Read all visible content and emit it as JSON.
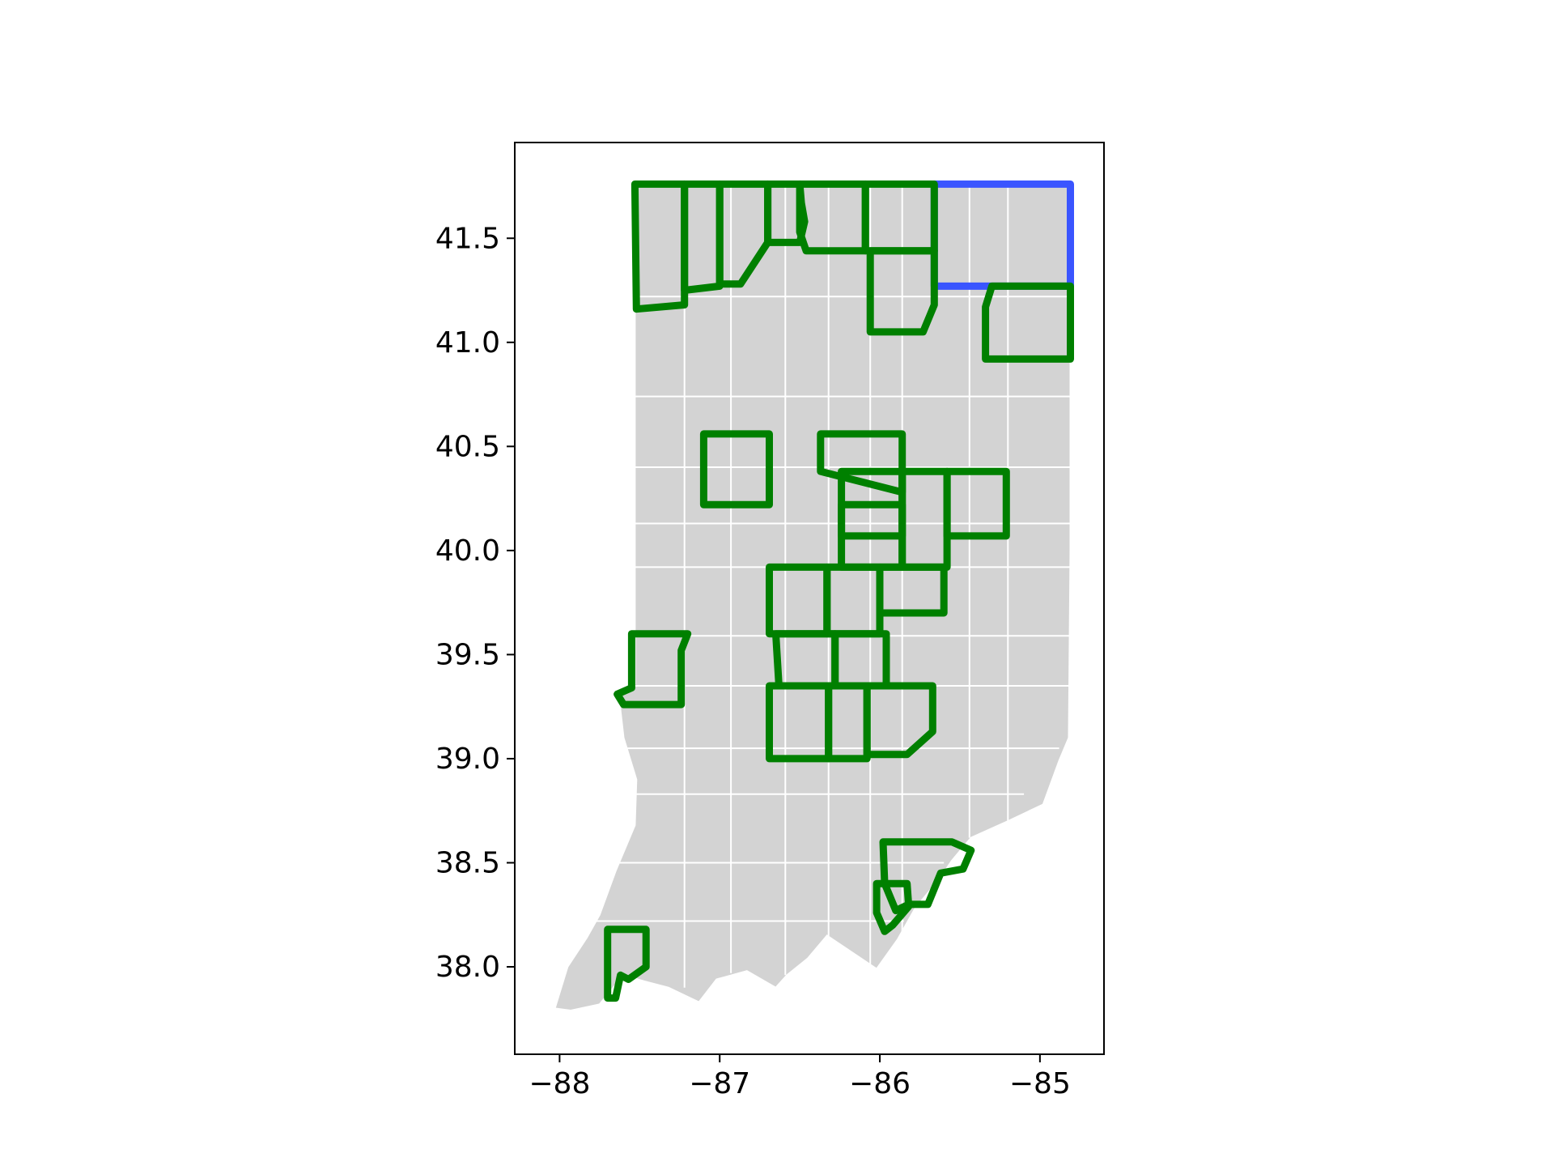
{
  "chart_data": {
    "type": "map",
    "title": "",
    "xlabel": "",
    "ylabel": "",
    "xlim": [
      -88.28,
      -84.6
    ],
    "ylim": [
      37.58,
      41.96
    ],
    "grid": false,
    "x_ticks": [
      {
        "value": -88,
        "label": "−88"
      },
      {
        "value": -87,
        "label": "−87"
      },
      {
        "value": -86,
        "label": "−86"
      },
      {
        "value": -85,
        "label": "−85"
      }
    ],
    "y_ticks": [
      {
        "value": 41.5,
        "label": "41.5"
      },
      {
        "value": 41.0,
        "label": "41.0"
      },
      {
        "value": 40.5,
        "label": "40.5"
      },
      {
        "value": 40.0,
        "label": "40.0"
      },
      {
        "value": 39.5,
        "label": "39.5"
      },
      {
        "value": 39.0,
        "label": "39.0"
      },
      {
        "value": 38.5,
        "label": "38.5"
      },
      {
        "value": 38.0,
        "label": "38.0"
      }
    ],
    "colors": {
      "land": "#d3d3d3",
      "county_border": "#ffffff",
      "highlight_green": "#008000",
      "highlight_blue": "#3a55ff"
    },
    "state_outline": [
      [
        -87.53,
        41.76
      ],
      [
        -84.81,
        41.76
      ],
      [
        -84.81,
        40.0
      ],
      [
        -84.82,
        39.1
      ],
      [
        -84.88,
        38.99
      ],
      [
        -84.98,
        38.78
      ],
      [
        -85.2,
        38.7
      ],
      [
        -85.43,
        38.62
      ],
      [
        -85.55,
        38.51
      ],
      [
        -85.63,
        38.42
      ],
      [
        -85.78,
        38.28
      ],
      [
        -85.89,
        38.13
      ],
      [
        -86.02,
        37.99
      ],
      [
        -86.33,
        38.15
      ],
      [
        -86.45,
        38.04
      ],
      [
        -86.58,
        37.96
      ],
      [
        -86.65,
        37.9
      ],
      [
        -86.83,
        37.98
      ],
      [
        -87.02,
        37.94
      ],
      [
        -87.13,
        37.83
      ],
      [
        -87.32,
        37.9
      ],
      [
        -87.47,
        37.93
      ],
      [
        -87.6,
        37.96
      ],
      [
        -87.75,
        37.82
      ],
      [
        -87.93,
        37.79
      ],
      [
        -88.03,
        37.8
      ],
      [
        -87.95,
        38.0
      ],
      [
        -87.83,
        38.14
      ],
      [
        -87.75,
        38.25
      ],
      [
        -87.65,
        38.46
      ],
      [
        -87.53,
        38.68
      ],
      [
        -87.52,
        38.9
      ],
      [
        -87.6,
        39.1
      ],
      [
        -87.63,
        39.3
      ],
      [
        -87.53,
        39.36
      ],
      [
        -87.53,
        41.76
      ]
    ],
    "county_lines": [
      [
        [
          -87.53,
          41.22
        ],
        [
          -84.81,
          41.22
        ]
      ],
      [
        [
          -87.53,
          40.74
        ],
        [
          -84.81,
          40.74
        ]
      ],
      [
        [
          -87.53,
          40.4
        ],
        [
          -84.81,
          40.4
        ]
      ],
      [
        [
          -87.53,
          40.13
        ],
        [
          -84.81,
          40.13
        ]
      ],
      [
        [
          -87.53,
          39.92
        ],
        [
          -84.81,
          39.92
        ]
      ],
      [
        [
          -87.53,
          39.59
        ],
        [
          -84.81,
          39.59
        ]
      ],
      [
        [
          -87.53,
          39.35
        ],
        [
          -84.81,
          39.35
        ]
      ],
      [
        [
          -87.6,
          39.05
        ],
        [
          -84.88,
          39.05
        ]
      ],
      [
        [
          -87.53,
          38.83
        ],
        [
          -85.1,
          38.83
        ]
      ],
      [
        [
          -87.7,
          38.5
        ],
        [
          -85.6,
          38.5
        ]
      ],
      [
        [
          -87.85,
          38.22
        ],
        [
          -85.85,
          38.22
        ]
      ],
      [
        [
          -87.22,
          41.76
        ],
        [
          -87.22,
          37.9
        ]
      ],
      [
        [
          -86.93,
          41.76
        ],
        [
          -86.93,
          37.97
        ]
      ],
      [
        [
          -86.59,
          41.76
        ],
        [
          -86.59,
          37.96
        ]
      ],
      [
        [
          -86.32,
          41.76
        ],
        [
          -86.32,
          38.14
        ]
      ],
      [
        [
          -86.06,
          41.76
        ],
        [
          -86.06,
          38.0
        ]
      ],
      [
        [
          -85.86,
          41.76
        ],
        [
          -85.86,
          38.1
        ]
      ],
      [
        [
          -85.44,
          41.76
        ],
        [
          -85.44,
          38.62
        ]
      ],
      [
        [
          -85.2,
          41.76
        ],
        [
          -85.2,
          38.7
        ]
      ]
    ],
    "highlighted_counties": [
      {
        "color": "green",
        "boundary": [
          [
            -87.53,
            41.76
          ],
          [
            -87.22,
            41.76
          ],
          [
            -87.22,
            41.18
          ],
          [
            -87.52,
            41.16
          ],
          [
            -87.53,
            41.76
          ]
        ]
      },
      {
        "color": "green",
        "boundary": [
          [
            -87.22,
            41.76
          ],
          [
            -87.0,
            41.76
          ],
          [
            -87.0,
            41.27
          ],
          [
            -87.22,
            41.25
          ],
          [
            -87.22,
            41.76
          ]
        ]
      },
      {
        "color": "green",
        "boundary": [
          [
            -87.0,
            41.76
          ],
          [
            -86.7,
            41.76
          ],
          [
            -86.7,
            41.48
          ],
          [
            -86.87,
            41.28
          ],
          [
            -87.0,
            41.28
          ],
          [
            -87.0,
            41.76
          ]
        ]
      },
      {
        "color": "green",
        "boundary": [
          [
            -86.7,
            41.76
          ],
          [
            -86.5,
            41.76
          ],
          [
            -86.49,
            41.67
          ],
          [
            -86.47,
            41.58
          ],
          [
            -86.5,
            41.48
          ],
          [
            -86.7,
            41.48
          ],
          [
            -86.7,
            41.76
          ]
        ]
      },
      {
        "color": "green",
        "boundary": [
          [
            -86.5,
            41.76
          ],
          [
            -86.09,
            41.76
          ],
          [
            -86.09,
            41.44
          ],
          [
            -86.46,
            41.44
          ],
          [
            -86.5,
            41.53
          ],
          [
            -86.5,
            41.76
          ]
        ]
      },
      {
        "color": "green",
        "boundary": [
          [
            -86.09,
            41.76
          ],
          [
            -85.66,
            41.76
          ],
          [
            -85.66,
            41.44
          ],
          [
            -86.09,
            41.44
          ],
          [
            -86.09,
            41.76
          ]
        ]
      },
      {
        "color": "green",
        "boundary": [
          [
            -86.06,
            41.44
          ],
          [
            -85.66,
            41.44
          ],
          [
            -85.66,
            41.18
          ],
          [
            -85.73,
            41.05
          ],
          [
            -86.06,
            41.05
          ],
          [
            -86.06,
            41.44
          ]
        ]
      },
      {
        "color": "green",
        "boundary": [
          [
            -85.3,
            41.27
          ],
          [
            -84.81,
            41.27
          ],
          [
            -84.81,
            40.92
          ],
          [
            -85.34,
            40.92
          ],
          [
            -85.34,
            41.17
          ],
          [
            -85.3,
            41.27
          ]
        ]
      },
      {
        "color": "blue",
        "boundary": [
          [
            -85.66,
            41.76
          ],
          [
            -84.81,
            41.76
          ],
          [
            -84.81,
            41.27
          ],
          [
            -85.66,
            41.27
          ],
          [
            -85.66,
            41.76
          ]
        ]
      },
      {
        "color": "green",
        "boundary": [
          [
            -87.1,
            40.56
          ],
          [
            -86.69,
            40.56
          ],
          [
            -86.69,
            40.22
          ],
          [
            -87.1,
            40.22
          ],
          [
            -87.1,
            40.56
          ]
        ]
      },
      {
        "color": "green",
        "boundary": [
          [
            -86.37,
            40.56
          ],
          [
            -85.86,
            40.56
          ],
          [
            -85.86,
            40.28
          ],
          [
            -86.37,
            40.38
          ],
          [
            -86.37,
            40.56
          ]
        ]
      },
      {
        "color": "green",
        "boundary": [
          [
            -86.24,
            40.38
          ],
          [
            -85.86,
            40.38
          ],
          [
            -85.86,
            40.07
          ],
          [
            -86.24,
            40.07
          ],
          [
            -86.24,
            40.38
          ]
        ]
      },
      {
        "color": "green",
        "boundary": [
          [
            -85.86,
            40.38
          ],
          [
            -85.58,
            40.38
          ],
          [
            -85.58,
            39.92
          ],
          [
            -85.86,
            39.92
          ],
          [
            -85.86,
            40.38
          ]
        ]
      },
      {
        "color": "green",
        "boundary": [
          [
            -85.58,
            40.38
          ],
          [
            -85.21,
            40.38
          ],
          [
            -85.21,
            40.07
          ],
          [
            -85.58,
            40.07
          ],
          [
            -85.58,
            40.38
          ]
        ]
      },
      {
        "color": "green",
        "boundary": [
          [
            -86.24,
            40.22
          ],
          [
            -85.86,
            40.22
          ],
          [
            -85.86,
            39.92
          ],
          [
            -86.24,
            39.92
          ],
          [
            -86.24,
            40.22
          ]
        ]
      },
      {
        "color": "green",
        "boundary": [
          [
            -86.69,
            39.92
          ],
          [
            -86.33,
            39.92
          ],
          [
            -86.33,
            39.6
          ],
          [
            -86.69,
            39.6
          ],
          [
            -86.69,
            39.92
          ]
        ]
      },
      {
        "color": "green",
        "boundary": [
          [
            -86.33,
            39.92
          ],
          [
            -86.0,
            39.92
          ],
          [
            -86.0,
            39.6
          ],
          [
            -86.33,
            39.6
          ],
          [
            -86.33,
            39.92
          ]
        ]
      },
      {
        "color": "green",
        "boundary": [
          [
            -86.0,
            39.92
          ],
          [
            -85.6,
            39.92
          ],
          [
            -85.6,
            39.7
          ],
          [
            -86.0,
            39.7
          ],
          [
            -86.0,
            39.92
          ]
        ]
      },
      {
        "color": "green",
        "boundary": [
          [
            -86.65,
            39.6
          ],
          [
            -86.28,
            39.6
          ],
          [
            -86.28,
            39.35
          ],
          [
            -86.63,
            39.35
          ],
          [
            -86.65,
            39.6
          ]
        ]
      },
      {
        "color": "green",
        "boundary": [
          [
            -86.28,
            39.6
          ],
          [
            -85.96,
            39.6
          ],
          [
            -85.96,
            39.35
          ],
          [
            -86.28,
            39.35
          ],
          [
            -86.28,
            39.6
          ]
        ]
      },
      {
        "color": "green",
        "boundary": [
          [
            -86.69,
            39.35
          ],
          [
            -86.32,
            39.35
          ],
          [
            -86.32,
            39.0
          ],
          [
            -86.69,
            39.0
          ],
          [
            -86.69,
            39.35
          ]
        ]
      },
      {
        "color": "green",
        "boundary": [
          [
            -86.32,
            39.35
          ],
          [
            -86.08,
            39.35
          ],
          [
            -86.08,
            39.0
          ],
          [
            -86.32,
            39.0
          ],
          [
            -86.32,
            39.35
          ]
        ]
      },
      {
        "color": "green",
        "boundary": [
          [
            -86.08,
            39.35
          ],
          [
            -85.67,
            39.35
          ],
          [
            -85.67,
            39.13
          ],
          [
            -85.83,
            39.02
          ],
          [
            -86.08,
            39.02
          ],
          [
            -86.08,
            39.35
          ]
        ]
      },
      {
        "color": "green",
        "boundary": [
          [
            -87.55,
            39.6
          ],
          [
            -87.2,
            39.6
          ],
          [
            -87.24,
            39.52
          ],
          [
            -87.24,
            39.26
          ],
          [
            -87.6,
            39.26
          ],
          [
            -87.64,
            39.31
          ],
          [
            -87.55,
            39.34
          ],
          [
            -87.55,
            39.6
          ]
        ]
      },
      {
        "color": "green",
        "boundary": [
          [
            -85.98,
            38.6
          ],
          [
            -85.55,
            38.6
          ],
          [
            -85.43,
            38.56
          ],
          [
            -85.48,
            38.47
          ],
          [
            -85.62,
            38.45
          ],
          [
            -85.7,
            38.3
          ],
          [
            -85.82,
            38.3
          ],
          [
            -85.9,
            38.27
          ],
          [
            -85.97,
            38.4
          ],
          [
            -85.98,
            38.6
          ]
        ]
      },
      {
        "color": "green",
        "boundary": [
          [
            -86.02,
            38.4
          ],
          [
            -85.83,
            38.4
          ],
          [
            -85.82,
            38.29
          ],
          [
            -85.92,
            38.2
          ],
          [
            -85.97,
            38.17
          ],
          [
            -86.02,
            38.26
          ],
          [
            -86.02,
            38.4
          ]
        ]
      },
      {
        "color": "green",
        "boundary": [
          [
            -87.7,
            38.18
          ],
          [
            -87.46,
            38.18
          ],
          [
            -87.46,
            38.0
          ],
          [
            -87.57,
            37.94
          ],
          [
            -87.62,
            37.96
          ],
          [
            -87.65,
            37.85
          ],
          [
            -87.7,
            37.85
          ],
          [
            -87.7,
            38.18
          ]
        ]
      }
    ]
  }
}
